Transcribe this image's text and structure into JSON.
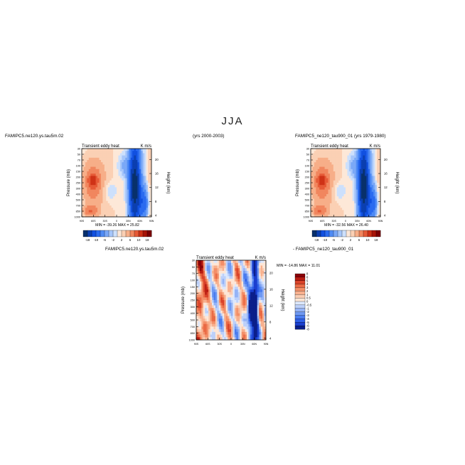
{
  "figure_title": "JJA",
  "panel_titles": {
    "p1_left": "FAMIPC5.ne120.ys.tau5m.02",
    "p1_right": "(yrs 2000-2003)",
    "p2_left": "FAMIPC5_ne120_tau900_01 (yrs 1979-1980)",
    "diff_left": "FAMIPC5.ne120.ys.tau5m.02",
    "diff_right": "- FAMIPC5_ne120_tau900_01"
  },
  "colors": {
    "palette": [
      "#08306b",
      "#0b3fb0",
      "#1150e0",
      "#2a6bf0",
      "#4f8bf5",
      "#7aa8f7",
      "#a6c6fa",
      "#cde0fc",
      "#fde8d8",
      "#fbd0b4",
      "#f7ae88",
      "#f1865e",
      "#e65a37",
      "#cf3217",
      "#a81408",
      "#7a0003"
    ],
    "diff_palette": [
      "#0b1f8a",
      "#1a3fcf",
      "#2e5fe8",
      "#4a7cef",
      "#6e98f2",
      "#94b3f6",
      "#bcd0fa",
      "#dce8fd",
      "#fde6d6",
      "#fbcdb3",
      "#f8b08e",
      "#f38f68",
      "#ea6a45",
      "#d9432a",
      "#b81c12",
      "#8a0008"
    ]
  },
  "chart_data": [
    {
      "type": "heatmap",
      "panel": "climatology-1",
      "title_left": "Transient eddy heat",
      "title_right": "K m/s",
      "ylabel": "Pressure (mb)",
      "ylabel_right": "Height (km)",
      "x_ticks": [
        "90S",
        "60S",
        "30S",
        "0",
        "30N",
        "60N",
        "90N"
      ],
      "y_ticks": [
        "30",
        "50",
        "70",
        "100",
        "150",
        "200",
        "250",
        "300",
        "400",
        "500",
        "700",
        "850",
        "1000"
      ],
      "y_ticks_right": [
        "20",
        "16",
        "12",
        "8",
        "4"
      ],
      "min_max_label": "MIN = -39.26   MAX =  25.82",
      "min": -39.26,
      "max": 25.82,
      "colorbar_labels": [
        "-18",
        "-10",
        "-6",
        "-2",
        "2",
        "6",
        "10",
        "18"
      ]
    },
    {
      "type": "heatmap",
      "panel": "climatology-2",
      "title_left": "Transient eddy heat",
      "title_right": "K m/s",
      "ylabel": "Pressure (mb)",
      "ylabel_right": "Height (km)",
      "x_ticks": [
        "90S",
        "60S",
        "30S",
        "0",
        "30N",
        "60N",
        "90N"
      ],
      "y_ticks": [
        "30",
        "50",
        "70",
        "100",
        "150",
        "200",
        "250",
        "300",
        "400",
        "500",
        "700",
        "850",
        "1000"
      ],
      "y_ticks_right": [
        "20",
        "16",
        "12",
        "8",
        "4"
      ],
      "min_max_label": "MIN = -32.56   MAX =  26.40",
      "min": -32.56,
      "max": 26.4,
      "colorbar_labels": [
        "-18",
        "-10",
        "-6",
        "-2",
        "2",
        "6",
        "10",
        "18"
      ]
    },
    {
      "type": "heatmap",
      "panel": "difference",
      "title_left": "Transient eddy heat",
      "title_right": "K m/s",
      "ylabel": "Pressure (mb)",
      "ylabel_right": "Height (km)",
      "x_ticks": [
        "90S",
        "60S",
        "30S",
        "0",
        "30N",
        "60N",
        "90N"
      ],
      "y_ticks": [
        "30",
        "50",
        "70",
        "100",
        "150",
        "200",
        "250",
        "300",
        "400",
        "500",
        "700",
        "850",
        "1000"
      ],
      "y_ticks_right": [
        "20",
        "16",
        "12",
        "8",
        "4"
      ],
      "min_max_label": "MIN = -14.86   MAX =  11.01",
      "min": -14.86,
      "max": 11.01,
      "colorbar_labels": [
        "8",
        "6",
        "5",
        "4",
        "3",
        "2",
        "1",
        "0.5",
        "0",
        "-0.5",
        "-1",
        "-2",
        "-3",
        "-4",
        "-5",
        "-6",
        "-8"
      ]
    }
  ]
}
